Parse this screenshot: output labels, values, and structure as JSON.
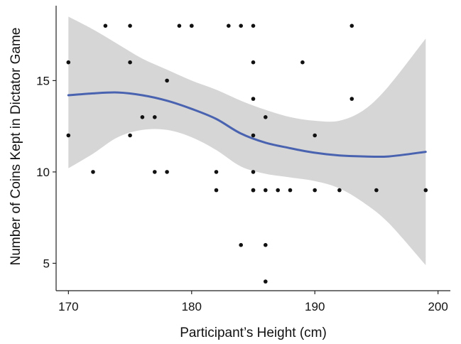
{
  "chart_data": {
    "type": "scatter",
    "title": "",
    "xlabel": "Participant’s Height (cm)",
    "ylabel": "Number of Coins Kept in Dictator Game",
    "xlim": [
      169,
      201
    ],
    "ylim": [
      3.5,
      19.1
    ],
    "x_ticks": [
      170,
      180,
      190,
      200
    ],
    "y_ticks": [
      5,
      10,
      15
    ],
    "grid": false,
    "legend": "none",
    "colors": {
      "points": "#111111",
      "smooth_line": "#4a63b0",
      "confidence_band": "#d6d6d6",
      "axis": "#222222"
    },
    "points": [
      [
        170,
        16
      ],
      [
        170,
        12
      ],
      [
        172,
        10
      ],
      [
        173,
        18
      ],
      [
        175,
        18
      ],
      [
        175,
        16
      ],
      [
        175,
        12
      ],
      [
        176,
        13
      ],
      [
        177,
        13
      ],
      [
        177,
        10
      ],
      [
        178,
        15
      ],
      [
        178,
        10
      ],
      [
        179,
        18
      ],
      [
        180,
        18
      ],
      [
        180,
        18
      ],
      [
        182,
        10
      ],
      [
        182,
        9
      ],
      [
        183,
        18
      ],
      [
        184,
        18
      ],
      [
        184,
        6
      ],
      [
        185,
        18
      ],
      [
        185,
        16
      ],
      [
        185,
        14
      ],
      [
        185,
        12
      ],
      [
        185,
        10
      ],
      [
        185,
        9
      ],
      [
        185,
        9
      ],
      [
        186,
        13
      ],
      [
        186,
        9
      ],
      [
        186,
        6
      ],
      [
        186,
        4
      ],
      [
        187,
        9
      ],
      [
        188,
        9
      ],
      [
        189,
        16
      ],
      [
        190,
        12
      ],
      [
        190,
        9
      ],
      [
        192,
        9
      ],
      [
        193,
        18
      ],
      [
        193,
        14
      ],
      [
        195,
        9
      ],
      [
        199,
        9
      ]
    ],
    "smooth": {
      "x": [
        170,
        172,
        174,
        176,
        178,
        180,
        182,
        184,
        186,
        188,
        190,
        192,
        194,
        196,
        199
      ],
      "y": [
        14.2,
        14.3,
        14.35,
        14.2,
        13.9,
        13.45,
        12.9,
        12.1,
        11.6,
        11.3,
        11.05,
        10.9,
        10.85,
        10.85,
        11.1
      ],
      "lower": [
        10.2,
        11.0,
        11.9,
        12.3,
        12.3,
        11.9,
        11.2,
        10.3,
        9.9,
        9.7,
        9.5,
        9.1,
        8.3,
        7.2,
        4.9
      ],
      "upper": [
        18.5,
        17.8,
        17.0,
        16.2,
        15.6,
        15.0,
        14.5,
        13.9,
        13.4,
        13.0,
        12.8,
        12.8,
        13.4,
        14.7,
        17.3
      ]
    }
  }
}
